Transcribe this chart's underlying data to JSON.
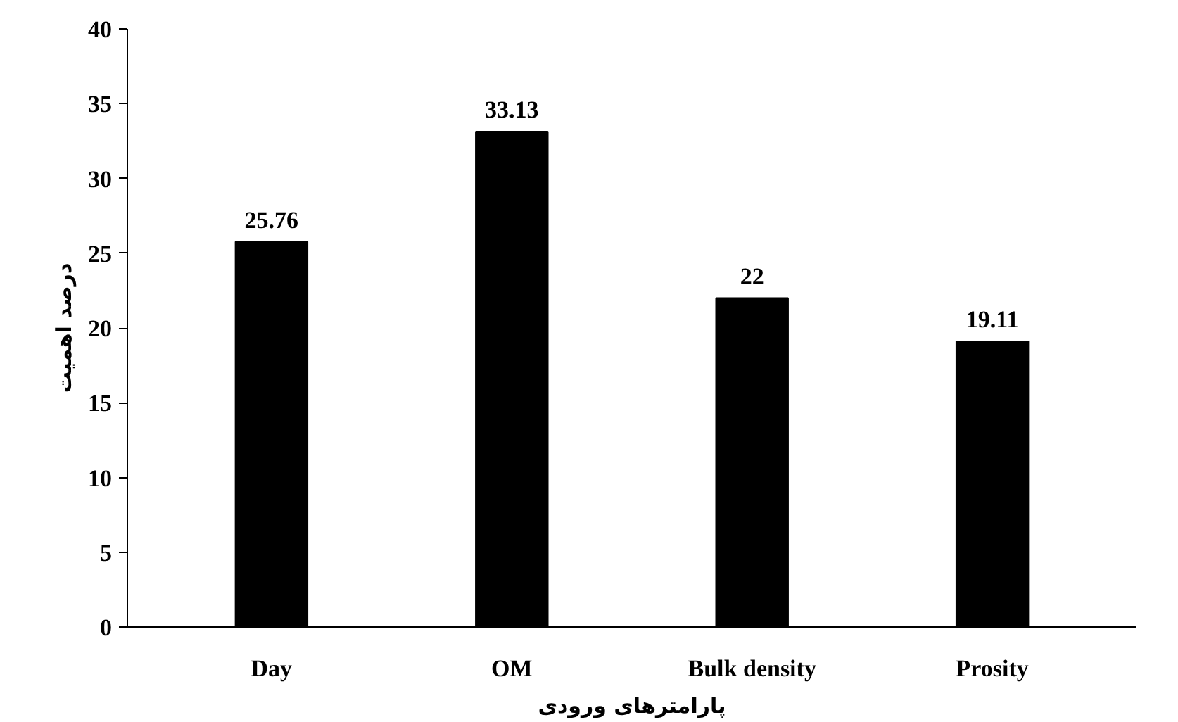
{
  "chart_data": {
    "type": "bar",
    "categories": [
      "Day",
      "OM",
      "Bulk density",
      "Prosity"
    ],
    "values": [
      25.76,
      33.13,
      22,
      19.11
    ],
    "color": "#000000",
    "xlabel": "پارامترهای ورودی",
    "ylabel": "درصد اهمیت",
    "ylim": [
      0,
      40
    ],
    "yticks": [
      0,
      5,
      10,
      15,
      20,
      25,
      30,
      35,
      40
    ],
    "data_labels": true,
    "grid": false
  }
}
